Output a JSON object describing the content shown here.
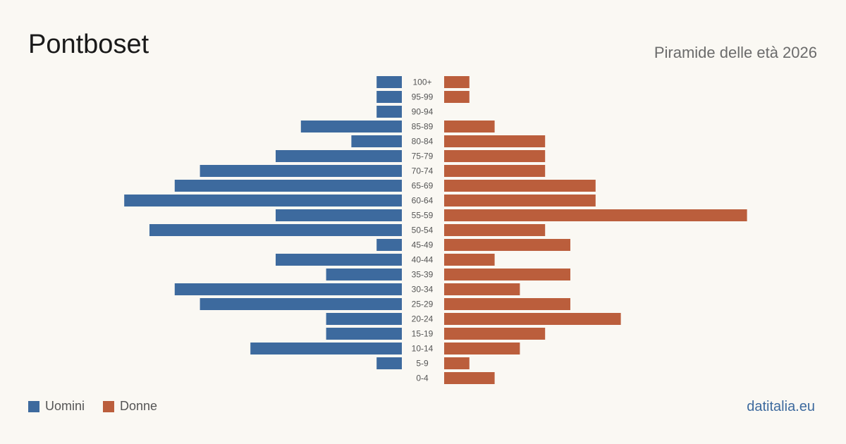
{
  "header": {
    "title": "Pontboset",
    "subtitle": "Piramide delle età 2026"
  },
  "legend": {
    "men_label": "Uomini",
    "women_label": "Donne"
  },
  "footer": {
    "brand": "datitalia.eu"
  },
  "colors": {
    "men": "#3d6a9e",
    "women": "#bb5e3c"
  },
  "chart_data": {
    "type": "bar",
    "orientation": "horizontal-pyramid",
    "categories": [
      "100+",
      "95-99",
      "90-94",
      "85-89",
      "80-84",
      "75-79",
      "70-74",
      "65-69",
      "60-64",
      "55-59",
      "50-54",
      "45-49",
      "40-44",
      "35-39",
      "30-34",
      "25-29",
      "20-24",
      "15-19",
      "10-14",
      "5-9",
      "0-4"
    ],
    "series": [
      {
        "name": "Uomini",
        "values": [
          1,
          1,
          1,
          4,
          2,
          5,
          8,
          9,
          11,
          5,
          10,
          1,
          5,
          3,
          9,
          8,
          3,
          3,
          6,
          1,
          0
        ]
      },
      {
        "name": "Donne",
        "values": [
          1,
          1,
          0,
          2,
          4,
          4,
          4,
          6,
          6,
          12,
          4,
          5,
          2,
          5,
          3,
          5,
          7,
          4,
          3,
          1,
          2
        ]
      }
    ],
    "grid": false,
    "legend_position": "bottom-left"
  }
}
